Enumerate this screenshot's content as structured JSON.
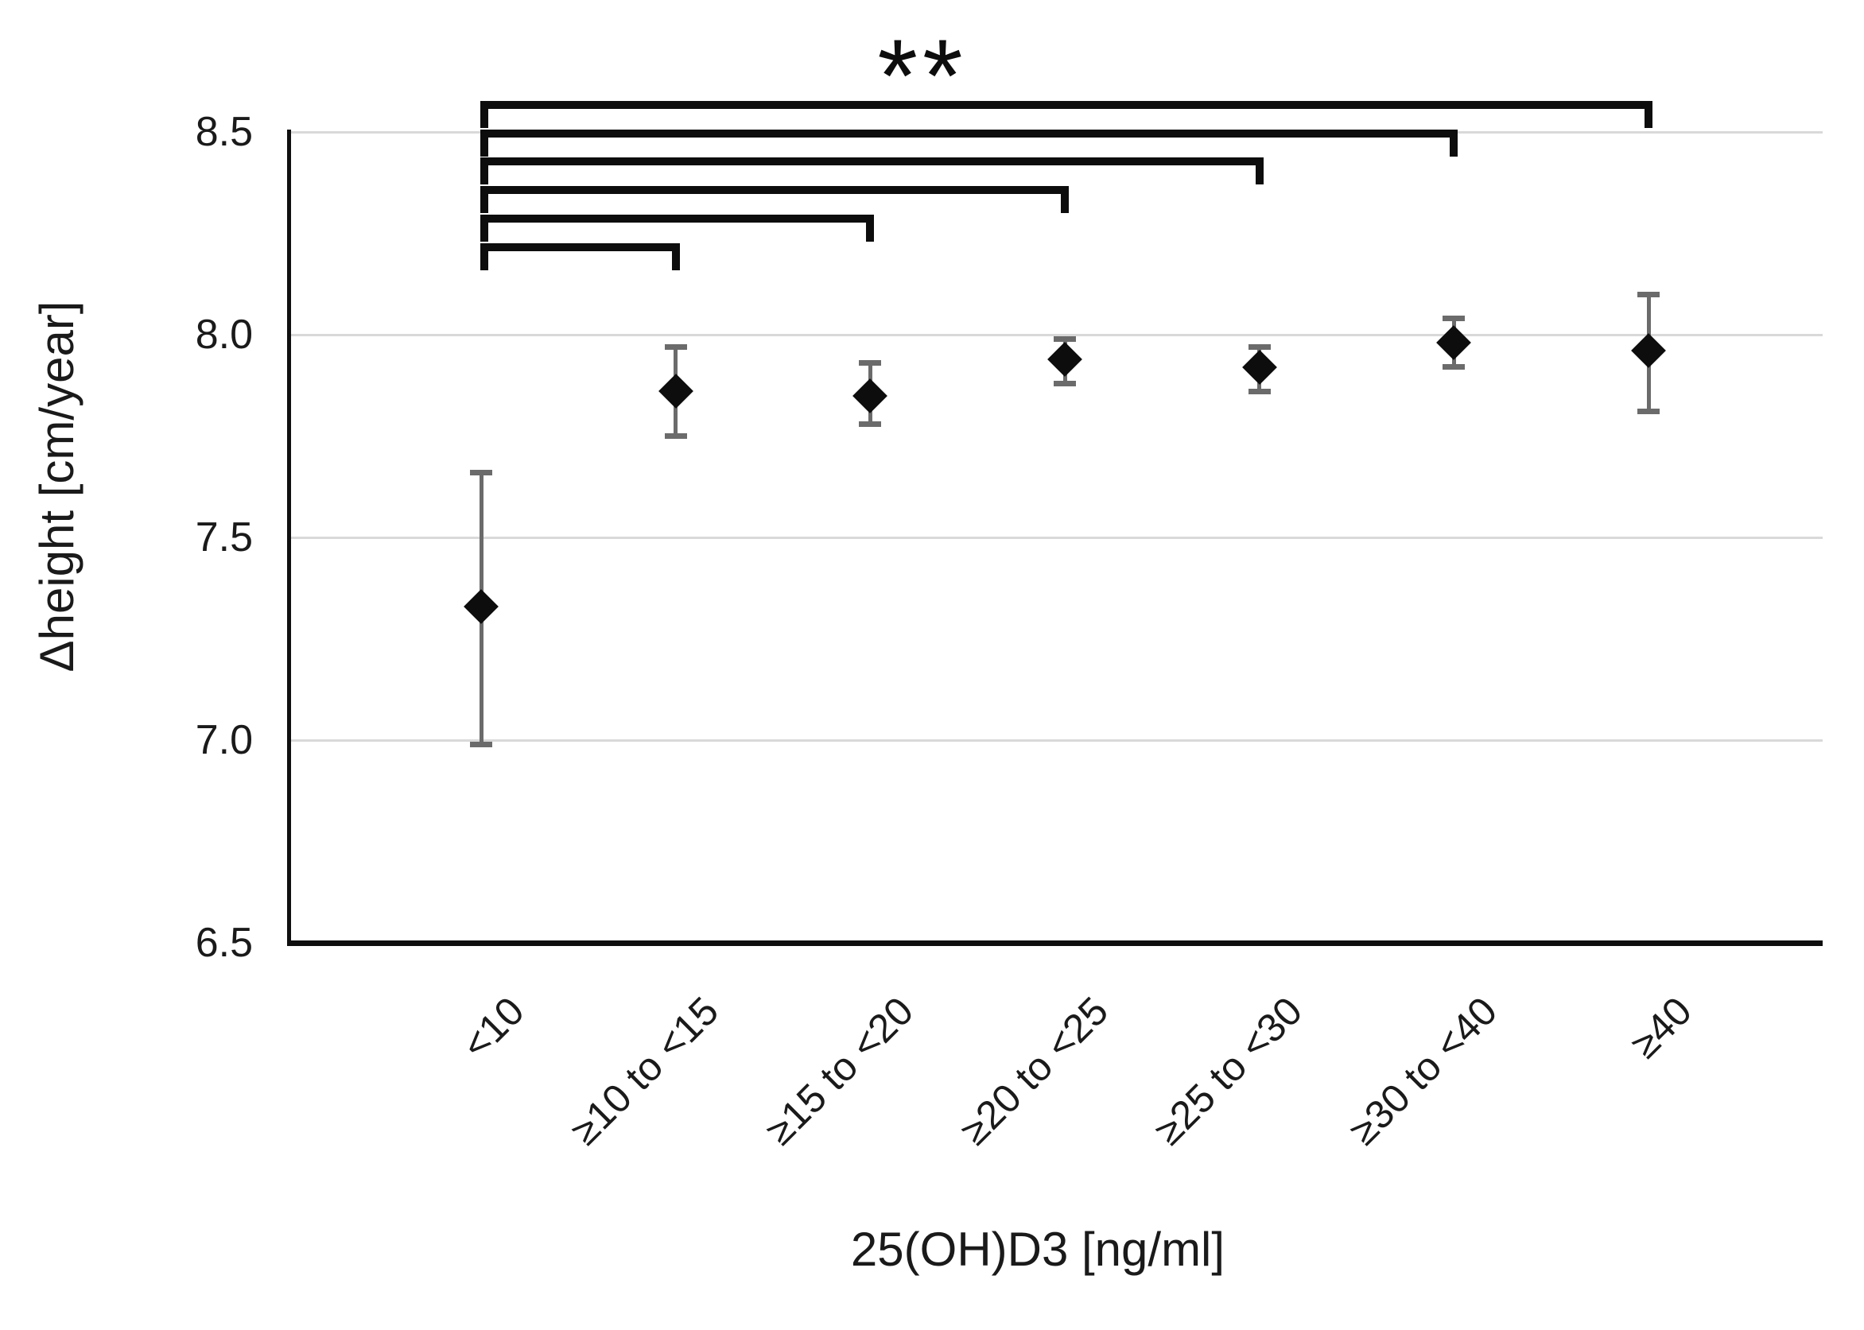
{
  "chart_data": {
    "type": "scatter",
    "subtype": "point-estimates-with-error-bars",
    "title": "",
    "xlabel": "25(OH)D3 [ng/ml]",
    "ylabel": "Δheight [cm/year]",
    "ylim": [
      6.5,
      8.5
    ],
    "yticks": [
      8.5,
      8.0,
      7.5,
      7.0,
      6.5
    ],
    "ytick_labels": [
      "8.5",
      "8.0",
      "7.5",
      "7.0",
      "6.5"
    ],
    "grid": "horizontal-only",
    "legend": "none",
    "marker": "diamond",
    "categories": [
      "<10",
      "≥10 to <15",
      "≥15 to <20",
      "≥20 to <25",
      "≥25 to <30",
      "≥30 to <40",
      "≥40"
    ],
    "series": [
      {
        "name": "Δheight",
        "values": [
          7.33,
          7.86,
          7.85,
          7.94,
          7.92,
          7.98,
          7.96
        ],
        "ci_low": [
          6.99,
          7.75,
          7.78,
          7.88,
          7.86,
          7.92,
          7.81
        ],
        "ci_high": [
          7.66,
          7.97,
          7.93,
          7.99,
          7.97,
          8.04,
          8.1
        ]
      }
    ],
    "significance": {
      "label": "**",
      "comparisons": [
        {
          "from": "<10",
          "to": "≥10 to <15"
        },
        {
          "from": "<10",
          "to": "≥15 to <20"
        },
        {
          "from": "<10",
          "to": "≥20 to <25"
        },
        {
          "from": "<10",
          "to": "≥25 to <30"
        },
        {
          "from": "<10",
          "to": "≥30 to <40"
        },
        {
          "from": "<10",
          "to": "≥40"
        }
      ]
    },
    "colors": {
      "marker": "#0d0d0d",
      "error_bar": "#6b6b6b",
      "gridline": "#d9d9d9",
      "axis": "#0f0f0f",
      "bracket": "#0d0d0d",
      "text": "#1a1a1a"
    }
  }
}
